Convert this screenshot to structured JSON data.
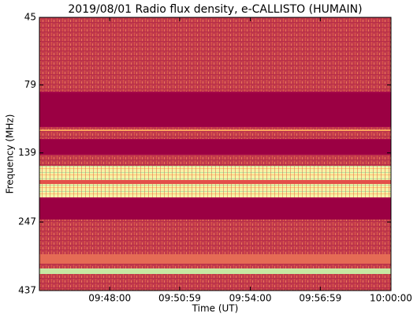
{
  "chart_data": {
    "type": "spectrogram",
    "title": "2019/08/01  Radio flux density, e-CALLISTO (HUMAIN)",
    "x_label": "Time (UT)",
    "y_label": "Frequency (MHz)",
    "xlim": [
      "09:45:00",
      "10:00:00"
    ],
    "xticks": [
      "09:48:00",
      "09:50:59",
      "09:54:00",
      "09:56:59",
      "10:00:00"
    ],
    "ylim": [
      45,
      437
    ],
    "yticks": [
      45,
      79,
      139,
      247,
      437
    ],
    "y_log": true,
    "y_inverted": true
  }
}
